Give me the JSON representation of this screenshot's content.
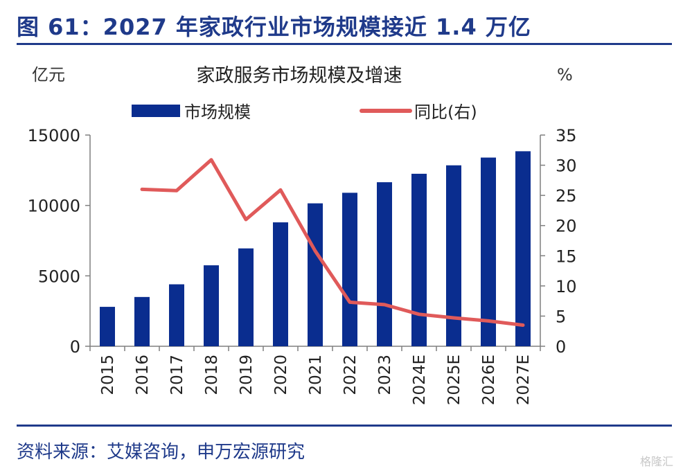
{
  "figure": {
    "title": "图 61：2027 年家政行业市场规模接近 1.4 万亿",
    "source": "资料来源：艾媒咨询，申万宏源研究",
    "watermark": "格隆汇"
  },
  "chart_data": {
    "type": "bar",
    "title": "家政服务市场规模及增速",
    "categories": [
      "2015",
      "2016",
      "2017",
      "2018",
      "2019",
      "2020",
      "2021",
      "2022",
      "2023",
      "2024E",
      "2025E",
      "2026E",
      "2027E"
    ],
    "ylabel_left": "亿元",
    "ylabel_right": "%",
    "ylim_left": [
      0,
      15000
    ],
    "yticks_left": [
      "0",
      "5000",
      "10000",
      "15000"
    ],
    "ylim_right": [
      0,
      35
    ],
    "yticks_right": [
      "0",
      "5",
      "10",
      "15",
      "20",
      "25",
      "30",
      "35"
    ],
    "legend_position": "top",
    "grid": false,
    "series": [
      {
        "name": "市场规模",
        "type": "bar",
        "axis": "left",
        "color": "#0a2d8f",
        "values": [
          2800,
          3500,
          4400,
          5750,
          6950,
          8800,
          10150,
          10900,
          11650,
          12250,
          12850,
          13400,
          13850
        ]
      },
      {
        "name": "同比(右)",
        "type": "line",
        "axis": "right",
        "color": "#e05a5a",
        "values": [
          null,
          26.0,
          25.8,
          30.9,
          21.0,
          25.9,
          15.8,
          7.3,
          6.9,
          5.3,
          4.7,
          4.2,
          3.5
        ]
      }
    ]
  }
}
